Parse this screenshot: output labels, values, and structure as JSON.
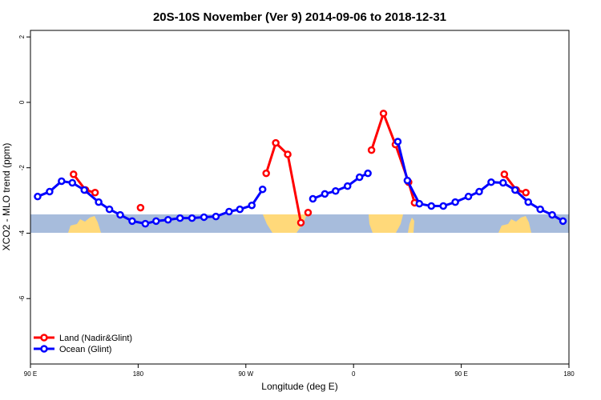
{
  "chart_data": {
    "type": "line",
    "title": "20S-10S November (Ver 9)   2014-09-06 to 2018-12-31",
    "x_label": "Longitude (deg E)",
    "y_label": "XCO2 - MLO trend (ppm)",
    "xlim": [
      90,
      540
    ],
    "ylim": [
      -8,
      2.2
    ],
    "xticks": [
      {
        "value": 90,
        "label": "90 E"
      },
      180,
      {
        "value": 270,
        "label": "90 W"
      },
      {
        "value": 360,
        "label": "0"
      },
      {
        "value": 450,
        "label": "90 E"
      },
      {
        "value": 540,
        "label": "180"
      }
    ],
    "yticks": [
      2,
      0,
      -2,
      -4,
      -6
    ],
    "legend": "bottom-left",
    "series": [
      {
        "name": "Land (Nadir&Glint)",
        "color": "#ff0000",
        "x": [
          126,
          136,
          144,
          null,
          182,
          null,
          287,
          295,
          305,
          316,
          null,
          322,
          null,
          375,
          385,
          395,
          406,
          411,
          null,
          486,
          496,
          504
        ],
        "values": [
          -2.2,
          -2.68,
          -2.76,
          null,
          -3.22,
          null,
          -2.17,
          -1.24,
          -1.59,
          -3.68,
          null,
          -3.37,
          null,
          -1.46,
          -0.34,
          -1.29,
          -2.44,
          -3.07,
          null,
          -2.2,
          -2.68,
          -2.76
        ]
      },
      {
        "name": "Ocean (Glint)",
        "color": "#0000ff",
        "x": [
          96,
          106,
          116,
          125,
          135,
          147,
          156,
          165,
          175,
          186,
          195,
          205,
          215,
          225,
          235,
          245,
          256,
          265,
          275,
          284,
          null,
          326,
          336,
          345,
          355,
          365,
          372,
          null,
          397,
          405,
          415,
          425,
          435,
          445,
          456,
          465,
          475,
          485,
          495,
          506,
          516,
          526,
          535
        ],
        "values": [
          -2.88,
          -2.73,
          -2.41,
          -2.46,
          -2.68,
          -3.05,
          -3.27,
          -3.44,
          -3.63,
          -3.71,
          -3.63,
          -3.59,
          -3.54,
          -3.54,
          -3.51,
          -3.49,
          -3.34,
          -3.27,
          -3.15,
          -2.66,
          null,
          -2.95,
          -2.8,
          -2.71,
          -2.56,
          -2.29,
          -2.17,
          null,
          -1.2,
          -2.39,
          -3.1,
          -3.17,
          -3.17,
          -3.05,
          -2.88,
          -2.73,
          -2.44,
          -2.46,
          -2.68,
          -3.05,
          -3.27,
          -3.44,
          -3.63
        ]
      }
    ]
  }
}
